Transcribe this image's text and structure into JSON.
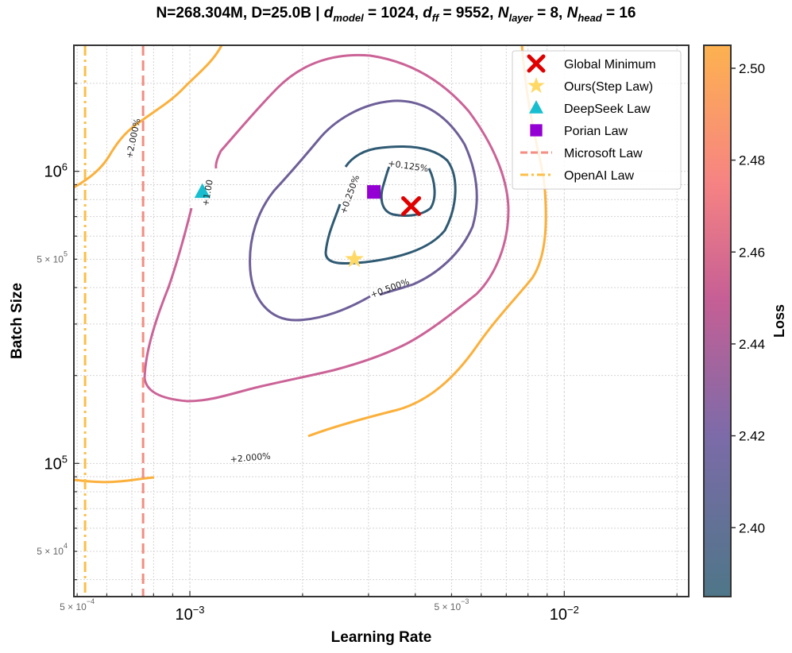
{
  "chart_data": {
    "type": "contour",
    "title": {
      "prefix": "N=268.304M, D=25.0B | ",
      "d_model_label": "d",
      "d_model_sub": "model",
      "d_model_value": " = 1024, ",
      "d_ff_label": "d",
      "d_ff_sub": "ff",
      "d_ff_value": " = 9552, ",
      "n_layer_label": "N",
      "n_layer_sub": "layer",
      "n_layer_value": " = 8, ",
      "n_head_label": "N",
      "n_head_sub": "head",
      "n_head_value": " = 16"
    },
    "xlabel": "Learning Rate",
    "ylabel": "Batch Size",
    "xscale": "log",
    "yscale": "log",
    "xlim": [
      0.00049,
      0.0215
    ],
    "ylim": [
      35000,
      2700000
    ],
    "x_major_ticks": [
      {
        "value": 0.001,
        "base": "10",
        "exp": "−3"
      },
      {
        "value": 0.01,
        "base": "10",
        "exp": "−2"
      }
    ],
    "x_minor_labels": [
      {
        "value": 0.0005,
        "mant": "5 × 10",
        "exp": "−4"
      },
      {
        "value": 0.005,
        "mant": "5 × 10",
        "exp": "−3"
      }
    ],
    "y_major_ticks": [
      {
        "value": 100000,
        "base": "10",
        "exp": "5"
      },
      {
        "value": 1000000,
        "base": "10",
        "exp": "6"
      }
    ],
    "y_minor_labels": [
      {
        "value": 50000,
        "mant": "5 × 10",
        "exp": "4"
      },
      {
        "value": 500000,
        "mant": "5 × 10",
        "exp": "5"
      }
    ],
    "contour_labels": [
      "+0.125%",
      "+0.250%",
      "+0.500%",
      "+1.00",
      "+2.000%",
      "+2.000%"
    ],
    "points": [
      {
        "name": "Global Minimum",
        "lr": 0.0039,
        "bs": 760000,
        "marker": "x",
        "color": "#e00000"
      },
      {
        "name": "Ours(Step Law)",
        "lr": 0.00275,
        "bs": 500000,
        "marker": "star",
        "color": "#ffd966"
      },
      {
        "name": "DeepSeek Law",
        "lr": 0.00108,
        "bs": 850000,
        "marker": "triangle",
        "color": "#17becf"
      },
      {
        "name": "Porian Law",
        "lr": 0.0031,
        "bs": 850000,
        "marker": "square",
        "color": "#9400d3"
      }
    ],
    "vertical_lines": [
      {
        "name": "Microsoft Law",
        "lr": 0.00075,
        "style": "dashed",
        "color": "#f28e82"
      },
      {
        "name": "OpenAI Law",
        "lr": 0.000525,
        "style": "dashdot",
        "color": "#fcbf49"
      }
    ],
    "colorbar": {
      "label": "Loss",
      "min": 2.385,
      "max": 2.505,
      "ticks": [
        "2.40",
        "2.42",
        "2.44",
        "2.46",
        "2.48",
        "2.50"
      ],
      "tick_values": [
        2.4,
        2.42,
        2.44,
        2.46,
        2.48,
        2.5
      ],
      "stops": [
        {
          "value": 2.385,
          "color": "#4e7688"
        },
        {
          "value": 2.42,
          "color": "#7c6ba8"
        },
        {
          "value": 2.45,
          "color": "#c65f95"
        },
        {
          "value": 2.475,
          "color": "#f68383"
        },
        {
          "value": 2.505,
          "color": "#fdb24f"
        }
      ]
    },
    "legend": {
      "placement": "top-right"
    }
  }
}
